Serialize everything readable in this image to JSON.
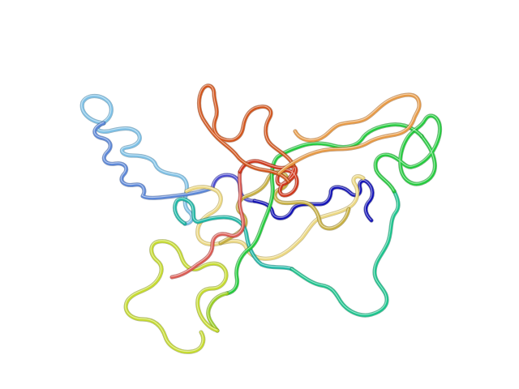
{
  "image": {
    "background": "#ffffff",
    "subject": "protein-ribbon-cartoon"
  },
  "segments": [
    {
      "id": "blue-n-terminus",
      "color": "#1010b8",
      "shade": "#05055e"
    },
    {
      "id": "slate-blue",
      "color": "#4a4ad0",
      "shade": "#23237a"
    },
    {
      "id": "cornflower-helix",
      "color": "#5a86d8",
      "shade": "#2c4a86"
    },
    {
      "id": "sky-blue-helix",
      "color": "#7cc0e6",
      "shade": "#3c7496"
    },
    {
      "id": "teal",
      "color": "#1ab8a6",
      "shade": "#0a6a60"
    },
    {
      "id": "sea-green",
      "color": "#18c48c",
      "shade": "#0a7452"
    },
    {
      "id": "green",
      "color": "#22cc3c",
      "shade": "#0e7a1e"
    },
    {
      "id": "lime",
      "color": "#9ad020",
      "shade": "#5a7c0e"
    },
    {
      "id": "yellow-green",
      "color": "#c6dc2c",
      "shade": "#768418"
    },
    {
      "id": "khaki",
      "color": "#c8b040",
      "shade": "#7a6a1e"
    },
    {
      "id": "pale-yellow",
      "color": "#ecd880",
      "shade": "#a08c40"
    },
    {
      "id": "orange",
      "color": "#e89a44",
      "shade": "#98581c"
    },
    {
      "id": "orange-red",
      "color": "#d4541a",
      "shade": "#82300a"
    },
    {
      "id": "red-c-terminus",
      "color": "#d03418",
      "shade": "#7e1a08"
    },
    {
      "id": "salmon",
      "color": "#dc5a52",
      "shade": "#8a2a26"
    }
  ]
}
